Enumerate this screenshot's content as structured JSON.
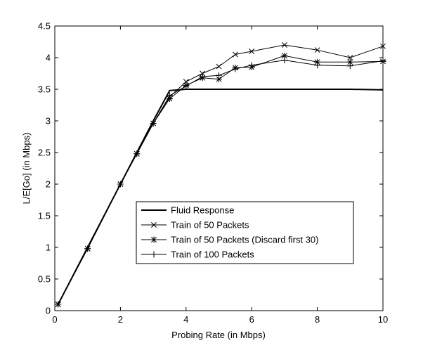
{
  "chart_data": {
    "type": "line",
    "title": "",
    "xlabel": "Probing Rate (in Mbps)",
    "ylabel": "L/E[Go] (in Mbps)",
    "xlim": [
      0,
      10
    ],
    "ylim": [
      0,
      4.5
    ],
    "xticks": [
      0,
      2,
      4,
      6,
      8,
      10
    ],
    "xtick_labels": [
      "0",
      "2",
      "4",
      "6",
      "8",
      "10"
    ],
    "yticks": [
      0,
      0.5,
      1,
      1.5,
      2,
      2.5,
      3,
      3.5,
      4,
      4.5
    ],
    "ytick_labels": [
      "0",
      "0.5",
      "1",
      "1.5",
      "2",
      "2.5",
      "3",
      "3.5",
      "4",
      "4.5"
    ],
    "grid": false,
    "legend_position": "lower-right",
    "series": [
      {
        "name": "Fluid Response",
        "marker": "none",
        "x": [
          0.1,
          1,
          2,
          2.5,
          3,
          3.5,
          4,
          4.5,
          5,
          5.5,
          6,
          7,
          8,
          9,
          10
        ],
        "y": [
          0.1,
          1.0,
          2.0,
          2.5,
          3.0,
          3.48,
          3.5,
          3.5,
          3.5,
          3.5,
          3.5,
          3.5,
          3.5,
          3.5,
          3.49
        ]
      },
      {
        "name": "Train of 50 Packets",
        "marker": "x",
        "x": [
          0.1,
          1,
          2,
          2.5,
          3,
          3.5,
          4,
          4.5,
          5,
          5.5,
          6,
          7,
          8,
          9,
          10
        ],
        "y": [
          0.1,
          0.98,
          2.0,
          2.48,
          2.96,
          3.38,
          3.62,
          3.75,
          3.86,
          4.05,
          4.1,
          4.2,
          4.12,
          4.0,
          4.18
        ]
      },
      {
        "name": "Train of 50 Packets (Discard first 30)",
        "marker": "star",
        "x": [
          0.1,
          1,
          2,
          2.5,
          3,
          3.5,
          4,
          4.5,
          5,
          5.5,
          6,
          7,
          8,
          9,
          10
        ],
        "y": [
          0.1,
          0.98,
          2.0,
          2.48,
          2.96,
          3.35,
          3.56,
          3.68,
          3.66,
          3.84,
          3.85,
          4.03,
          3.93,
          3.93,
          3.94
        ]
      },
      {
        "name": "Train of 100 Packets",
        "marker": "plus",
        "x": [
          0.1,
          1,
          2,
          2.5,
          3,
          3.5,
          4,
          4.5,
          5,
          5.5,
          6,
          7,
          8,
          9,
          10
        ],
        "y": [
          0.1,
          0.98,
          2.0,
          2.48,
          2.96,
          3.4,
          3.55,
          3.7,
          3.72,
          3.82,
          3.88,
          3.96,
          3.88,
          3.87,
          3.95
        ]
      }
    ]
  }
}
